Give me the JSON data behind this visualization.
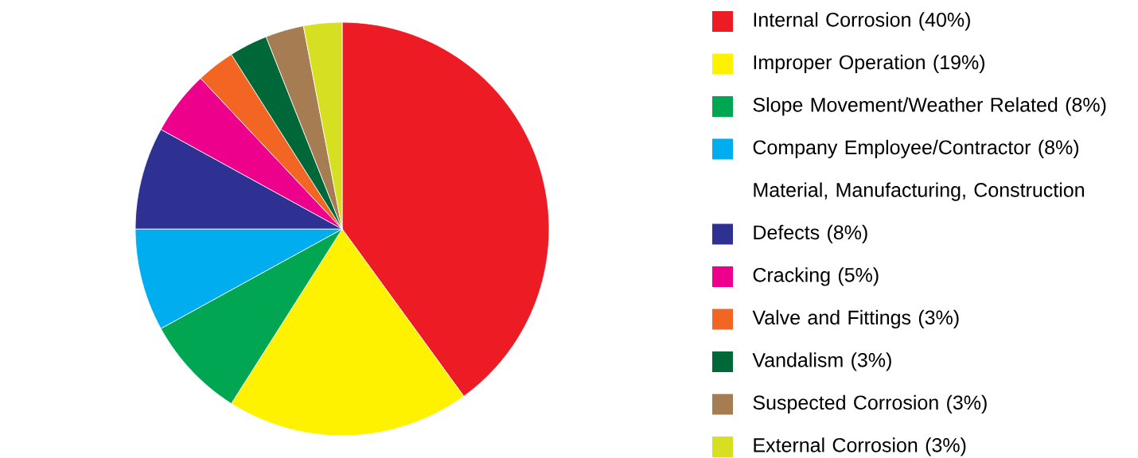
{
  "chart_data": {
    "type": "pie",
    "categories": [
      "Internal Corrosion (40%)",
      "Improper Operation (19%)",
      "Slope Movement/Weather Related (8%)",
      "Company Employee/Contractor (8%)",
      "Material, Manufacturing, Construction Defects (8%)",
      "Cracking (5%)",
      "Valve and Fittings (3%)",
      "Vandalism (3%)",
      "Suspected Corrosion (3%)",
      "External Corrosion (3%)"
    ],
    "values": [
      40,
      19,
      8,
      8,
      8,
      5,
      3,
      3,
      3,
      3
    ],
    "colors": [
      "#ed1c24",
      "#fff200",
      "#00a651",
      "#00aeef",
      "#2e3192",
      "#ec008c",
      "#f26522",
      "#006838",
      "#a67c52",
      "#d7df23"
    ],
    "legend": "right"
  }
}
